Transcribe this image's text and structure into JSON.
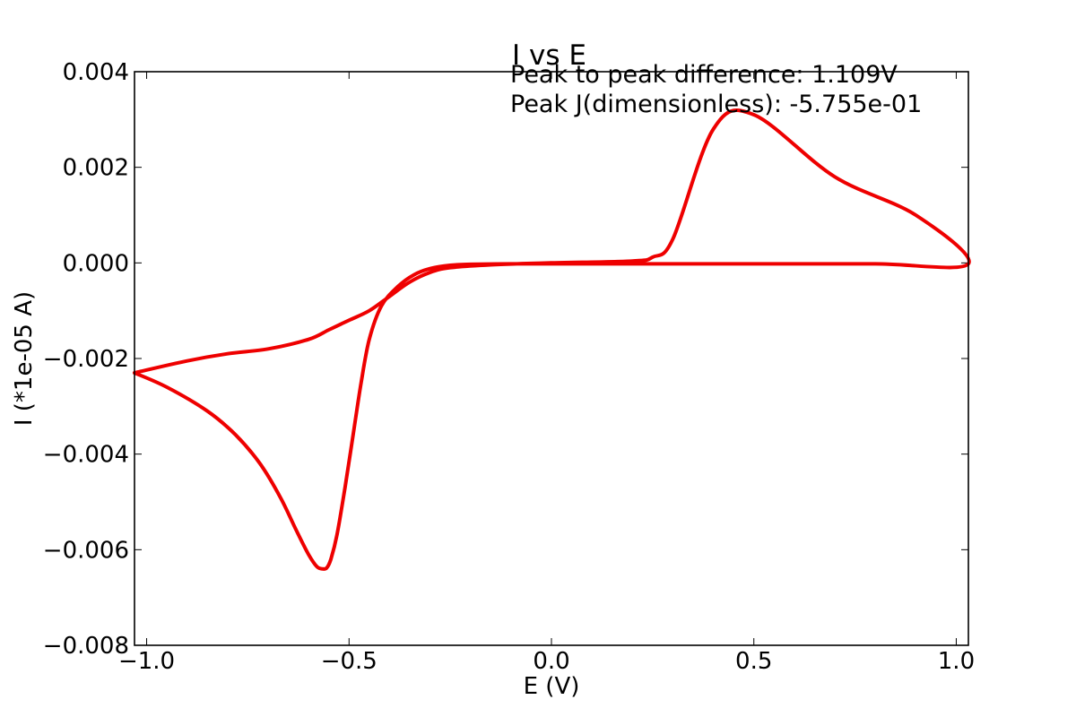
{
  "chart_data": {
    "type": "line",
    "title": "I vs E",
    "xlabel": "E (V)",
    "ylabel": "I (*1e-05 A)",
    "xlim": [
      -1.03,
      1.03
    ],
    "ylim": [
      -0.008,
      0.004
    ],
    "xticks": [
      -1.0,
      -0.5,
      0.0,
      0.5,
      1.0
    ],
    "xtick_labels": [
      "−1.0",
      "−0.5",
      "0.0",
      "0.5",
      "1.0"
    ],
    "yticks": [
      0.004,
      0.002,
      0.0,
      -0.002,
      -0.004,
      -0.006,
      -0.008
    ],
    "ytick_labels": [
      "0.004",
      "0.002",
      "0.000",
      "−0.002",
      "−0.004",
      "−0.006",
      "−0.008"
    ],
    "grid": false,
    "annotations": [
      "Peak to peak difference: 1.109V",
      "Peak J(dimensionless): -5.755e-01"
    ],
    "series": [
      {
        "color": "#ee0000",
        "x": [
          -1.03,
          -0.95,
          -0.85,
          -0.78,
          -0.72,
          -0.67,
          -0.63,
          -0.6,
          -0.58,
          -0.566,
          -0.555,
          -0.545,
          -0.53,
          -0.51,
          -0.49,
          -0.47,
          -0.45,
          -0.42,
          -0.38,
          -0.34,
          -0.3,
          -0.25,
          -0.2,
          -0.1,
          0.0,
          0.2,
          0.5,
          0.8,
          1.03,
          0.9,
          0.7,
          0.5,
          0.4,
          0.3,
          0.25,
          0.2,
          0.0,
          -0.15,
          -0.25,
          -0.3,
          -0.35,
          -0.4,
          -0.45,
          -0.5,
          -0.55,
          -0.6,
          -0.7,
          -0.8,
          -0.9,
          -1.03
        ],
        "y": [
          -0.0023,
          -0.0026,
          -0.0031,
          -0.0036,
          -0.0042,
          -0.0049,
          -0.0056,
          -0.0061,
          -0.00635,
          -0.0064,
          -0.00638,
          -0.0062,
          -0.0057,
          -0.0047,
          -0.0036,
          -0.0025,
          -0.0016,
          -0.0009,
          -0.0005,
          -0.00025,
          -0.00012,
          -5e-05,
          -3e-05,
          -2e-05,
          -2e-05,
          -2e-05,
          -2e-05,
          -2e-05,
          -2e-05,
          0.001,
          0.0018,
          0.0031,
          0.0028,
          0.0005,
          0.00012,
          4e-05,
          0.0,
          -4e-05,
          -0.0001,
          -0.0002,
          -0.0004,
          -0.0007,
          -0.001,
          -0.0012,
          -0.0014,
          -0.0016,
          -0.0018,
          -0.0019,
          -0.00205,
          -0.0023
        ]
      }
    ]
  }
}
